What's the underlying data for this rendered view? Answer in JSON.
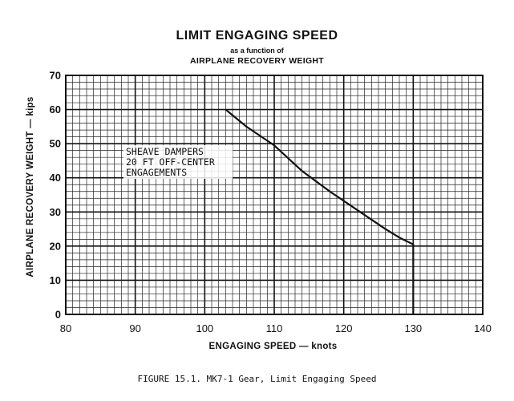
{
  "chart_data": {
    "type": "line",
    "title": "LIMIT ENGAGING SPEED",
    "subtitle": "as a function of",
    "subtitle2": "AIRPLANE RECOVERY WEIGHT",
    "xlabel": "ENGAGING SPEED — knots",
    "ylabel": "AIRPLANE RECOVERY WEIGHT — kips",
    "xlim": [
      80,
      140
    ],
    "ylim": [
      0,
      70
    ],
    "xticks": [
      "80",
      "90",
      "100",
      "110",
      "120",
      "130",
      "140"
    ],
    "yticks": [
      "0",
      "10",
      "20",
      "30",
      "40",
      "50",
      "60",
      "70"
    ],
    "grid": true,
    "annotation": [
      "SHEAVE DAMPERS",
      "20 FT OFF-CENTER",
      "ENGAGEMENTS"
    ],
    "series": [
      {
        "x": [
          103,
          106,
          110,
          114,
          118,
          122,
          126,
          128,
          130,
          130
        ],
        "y": [
          60,
          55,
          49.5,
          42,
          36,
          30.5,
          25,
          22.5,
          20.5,
          0
        ]
      }
    ]
  },
  "caption": "FIGURE 15.1.  MK7-1 Gear, Limit Engaging Speed",
  "colors": {
    "ink": "#111111",
    "grid": "#222222",
    "background": "#ffffff"
  }
}
